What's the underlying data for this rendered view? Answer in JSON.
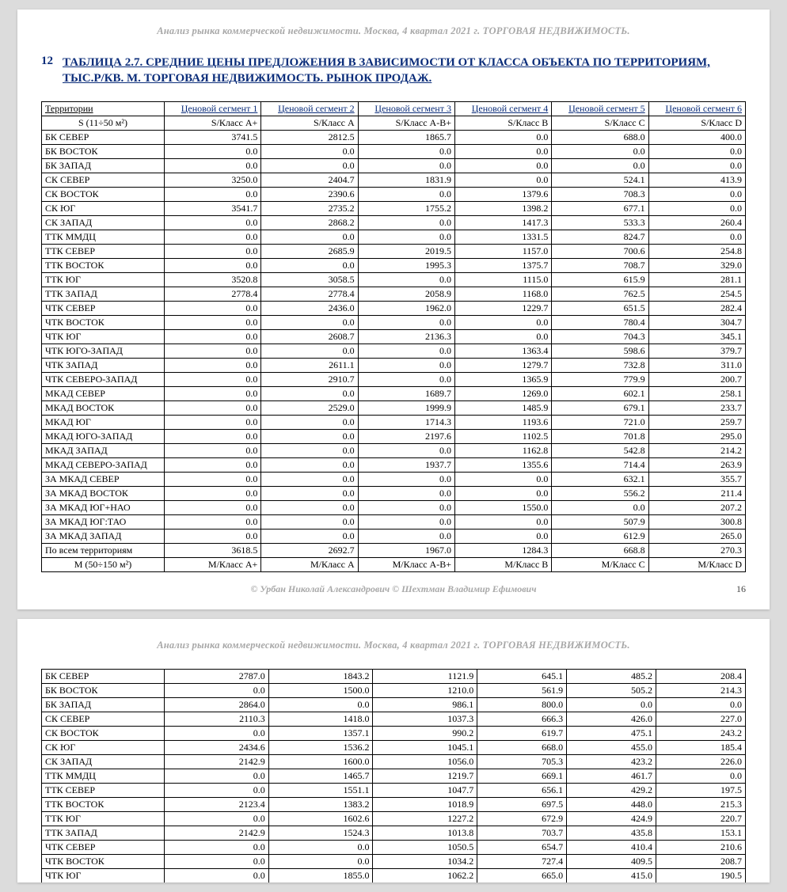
{
  "header_text": "Анализ рынка коммерческой недвижимости.   Москва,  4 квартал 2021 г.   ТОРГОВАЯ НЕДВИЖИМОСТЬ.",
  "title_num": "12",
  "title_text": "ТАБЛИЦА 2.7. СРЕДНИЕ ЦЕНЫ ПРЕДЛОЖЕНИЯ В ЗАВИСИМОСТИ ОТ КЛАССА ОБЪЕКТА ПО ТЕРРИТОРИЯМ, ТЫС.Р/КВ. М. ТОРГОВАЯ НЕДВИЖИМОСТЬ. РЫНОК ПРОДАЖ.",
  "credits": "© Урбан Николай Александрович   © Шехтман Владимир Ефимович",
  "page_number": "16",
  "table1": {
    "head_row1": [
      "Территории",
      "Ценовой сегмент 1",
      "Ценовой сегмент 2",
      "Ценовой сегмент 3",
      "Ценовой сегмент 4",
      "Ценовой сегмент 5",
      "Ценовой сегмент 6"
    ],
    "head_row2": [
      "S (11÷50 м²)",
      "S/Класс А+",
      "S/Класс А",
      "S/Класс А-В+",
      "S/Класс В",
      "S/Класс С",
      "S/Класс D"
    ],
    "rows": [
      [
        "БК СЕВЕР",
        "3741.5",
        "2812.5",
        "1865.7",
        "0.0",
        "688.0",
        "400.0"
      ],
      [
        "БК ВОСТОК",
        "0.0",
        "0.0",
        "0.0",
        "0.0",
        "0.0",
        "0.0"
      ],
      [
        "БК ЗАПАД",
        "0.0",
        "0.0",
        "0.0",
        "0.0",
        "0.0",
        "0.0"
      ],
      [
        "СК СЕВЕР",
        "3250.0",
        "2404.7",
        "1831.9",
        "0.0",
        "524.1",
        "413.9"
      ],
      [
        "СК ВОСТОК",
        "0.0",
        "2390.6",
        "0.0",
        "1379.6",
        "708.3",
        "0.0"
      ],
      [
        "СК ЮГ",
        "3541.7",
        "2735.2",
        "1755.2",
        "1398.2",
        "677.1",
        "0.0"
      ],
      [
        "СК ЗАПАД",
        "0.0",
        "2868.2",
        "0.0",
        "1417.3",
        "533.3",
        "260.4"
      ],
      [
        "ТТК ММДЦ",
        "0.0",
        "0.0",
        "0.0",
        "1331.5",
        "824.7",
        "0.0"
      ],
      [
        "ТТК СЕВЕР",
        "0.0",
        "2685.9",
        "2019.5",
        "1157.0",
        "700.6",
        "254.8"
      ],
      [
        "ТТК ВОСТОК",
        "0.0",
        "0.0",
        "1995.3",
        "1375.7",
        "708.7",
        "329.0"
      ],
      [
        "ТТК ЮГ",
        "3520.8",
        "3058.5",
        "0.0",
        "1115.0",
        "615.9",
        "281.1"
      ],
      [
        "ТТК ЗАПАД",
        "2778.4",
        "2778.4",
        "2058.9",
        "1168.0",
        "762.5",
        "254.5"
      ],
      [
        "ЧТК СЕВЕР",
        "0.0",
        "2436.0",
        "1962.0",
        "1229.7",
        "651.5",
        "282.4"
      ],
      [
        "ЧТК ВОСТОК",
        "0.0",
        "0.0",
        "0.0",
        "0.0",
        "780.4",
        "304.7"
      ],
      [
        "ЧТК ЮГ",
        "0.0",
        "2608.7",
        "2136.3",
        "0.0",
        "704.3",
        "345.1"
      ],
      [
        "ЧТК ЮГО-ЗАПАД",
        "0.0",
        "0.0",
        "0.0",
        "1363.4",
        "598.6",
        "379.7"
      ],
      [
        "ЧТК ЗАПАД",
        "0.0",
        "2611.1",
        "0.0",
        "1279.7",
        "732.8",
        "311.0"
      ],
      [
        "ЧТК СЕВЕРО-ЗАПАД",
        "0.0",
        "2910.7",
        "0.0",
        "1365.9",
        "779.9",
        "200.7"
      ],
      [
        "МКАД СЕВЕР",
        "0.0",
        "0.0",
        "1689.7",
        "1269.0",
        "602.1",
        "258.1"
      ],
      [
        "МКАД ВОСТОК",
        "0.0",
        "2529.0",
        "1999.9",
        "1485.9",
        "679.1",
        "233.7"
      ],
      [
        "МКАД ЮГ",
        "0.0",
        "0.0",
        "1714.3",
        "1193.6",
        "721.0",
        "259.7"
      ],
      [
        "МКАД ЮГО-ЗАПАД",
        "0.0",
        "0.0",
        "2197.6",
        "1102.5",
        "701.8",
        "295.0"
      ],
      [
        "МКАД ЗАПАД",
        "0.0",
        "0.0",
        "0.0",
        "1162.8",
        "542.8",
        "214.2"
      ],
      [
        "МКАД СЕВЕРО-ЗАПАД",
        "0.0",
        "0.0",
        "1937.7",
        "1355.6",
        "714.4",
        "263.9"
      ],
      [
        "ЗА МКАД СЕВЕР",
        "0.0",
        "0.0",
        "0.0",
        "0.0",
        "632.1",
        "355.7"
      ],
      [
        "ЗА МКАД ВОСТОК",
        "0.0",
        "0.0",
        "0.0",
        "0.0",
        "556.2",
        "211.4"
      ],
      [
        "ЗА МКАД ЮГ+НАО",
        "0.0",
        "0.0",
        "0.0",
        "1550.0",
        "0.0",
        "207.2"
      ],
      [
        "ЗА МКАД ЮГ:ТАО",
        "0.0",
        "0.0",
        "0.0",
        "0.0",
        "507.9",
        "300.8"
      ],
      [
        "ЗА МКАД ЗАПАД",
        "0.0",
        "0.0",
        "0.0",
        "0.0",
        "612.9",
        "265.0"
      ],
      [
        "По всем территориям",
        "3618.5",
        "2692.7",
        "1967.0",
        "1284.3",
        "668.8",
        "270.3"
      ]
    ],
    "foot_row": [
      "М (50÷150 м²)",
      "М/Класс А+",
      "М/Класс А",
      "М/Класс А-В+",
      "М/Класс В",
      "М/Класс С",
      "М/Класс D"
    ]
  },
  "table2": {
    "rows": [
      [
        "БК СЕВЕР",
        "2787.0",
        "1843.2",
        "1121.9",
        "645.1",
        "485.2",
        "208.4"
      ],
      [
        "БК ВОСТОК",
        "0.0",
        "1500.0",
        "1210.0",
        "561.9",
        "505.2",
        "214.3"
      ],
      [
        "БК ЗАПАД",
        "2864.0",
        "0.0",
        "986.1",
        "800.0",
        "0.0",
        "0.0"
      ],
      [
        "СК СЕВЕР",
        "2110.3",
        "1418.0",
        "1037.3",
        "666.3",
        "426.0",
        "227.0"
      ],
      [
        "СК ВОСТОК",
        "0.0",
        "1357.1",
        "990.2",
        "619.7",
        "475.1",
        "243.2"
      ],
      [
        "СК ЮГ",
        "2434.6",
        "1536.2",
        "1045.1",
        "668.0",
        "455.0",
        "185.4"
      ],
      [
        "СК ЗАПАД",
        "2142.9",
        "1600.0",
        "1056.0",
        "705.3",
        "423.2",
        "226.0"
      ],
      [
        "ТТК ММДЦ",
        "0.0",
        "1465.7",
        "1219.7",
        "669.1",
        "461.7",
        "0.0"
      ],
      [
        "ТТК СЕВЕР",
        "0.0",
        "1551.1",
        "1047.7",
        "656.1",
        "429.2",
        "197.5"
      ],
      [
        "ТТК ВОСТОК",
        "2123.4",
        "1383.2",
        "1018.9",
        "697.5",
        "448.0",
        "215.3"
      ],
      [
        "ТТК ЮГ",
        "0.0",
        "1602.6",
        "1227.2",
        "672.9",
        "424.9",
        "220.7"
      ],
      [
        "ТТК ЗАПАД",
        "2142.9",
        "1524.3",
        "1013.8",
        "703.7",
        "435.8",
        "153.1"
      ],
      [
        "ЧТК СЕВЕР",
        "0.0",
        "0.0",
        "1050.5",
        "654.7",
        "410.4",
        "210.6"
      ],
      [
        "ЧТК ВОСТОК",
        "0.0",
        "0.0",
        "1034.2",
        "727.4",
        "409.5",
        "208.7"
      ],
      [
        "ЧТК ЮГ",
        "0.0",
        "1855.0",
        "1062.2",
        "665.0",
        "415.0",
        "190.5"
      ]
    ]
  }
}
